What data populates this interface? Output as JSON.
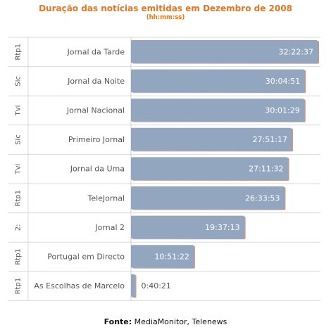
{
  "chart_data": {
    "type": "bar",
    "orientation": "horizontal",
    "title": "Duração das notícias emitidas em Dezembro de 2008",
    "subtitle": "(hh:mm:ss)",
    "source_label": "Fonte:",
    "source_text": "MediaMonitor, Telenews",
    "bar_color": "#93a6c0",
    "title_color": "#e8741e",
    "rows": [
      {
        "channel": "Rtp1",
        "program": "Jornal da Tarde",
        "value_label": "32:22:37",
        "seconds": 116557
      },
      {
        "channel": "Sic",
        "program": "Jornal da Noite",
        "value_label": "30:04:51",
        "seconds": 108291
      },
      {
        "channel": "Tvi",
        "program": "Jornal Nacional",
        "value_label": "30:01:29",
        "seconds": 108089
      },
      {
        "channel": "Sic",
        "program": "Primeiro Jornal",
        "value_label": "27:51:17",
        "seconds": 100277
      },
      {
        "channel": "Tvi",
        "program": "Jornal da Uma",
        "value_label": "27:11:32",
        "seconds": 97892
      },
      {
        "channel": "Rtp1",
        "program": "TeleJornal",
        "value_label": "26:33:53",
        "seconds": 95633
      },
      {
        "channel": "2:",
        "program": "Jornal 2",
        "value_label": "19:37:13",
        "seconds": 70633
      },
      {
        "channel": "Rtp1",
        "program": "Portugal em Directo",
        "value_label": "10:51:22",
        "seconds": 39082
      },
      {
        "channel": "Rtp1",
        "program": "As Escolhas de Marcelo",
        "value_label": "0:40:21",
        "seconds": 2421
      }
    ]
  }
}
